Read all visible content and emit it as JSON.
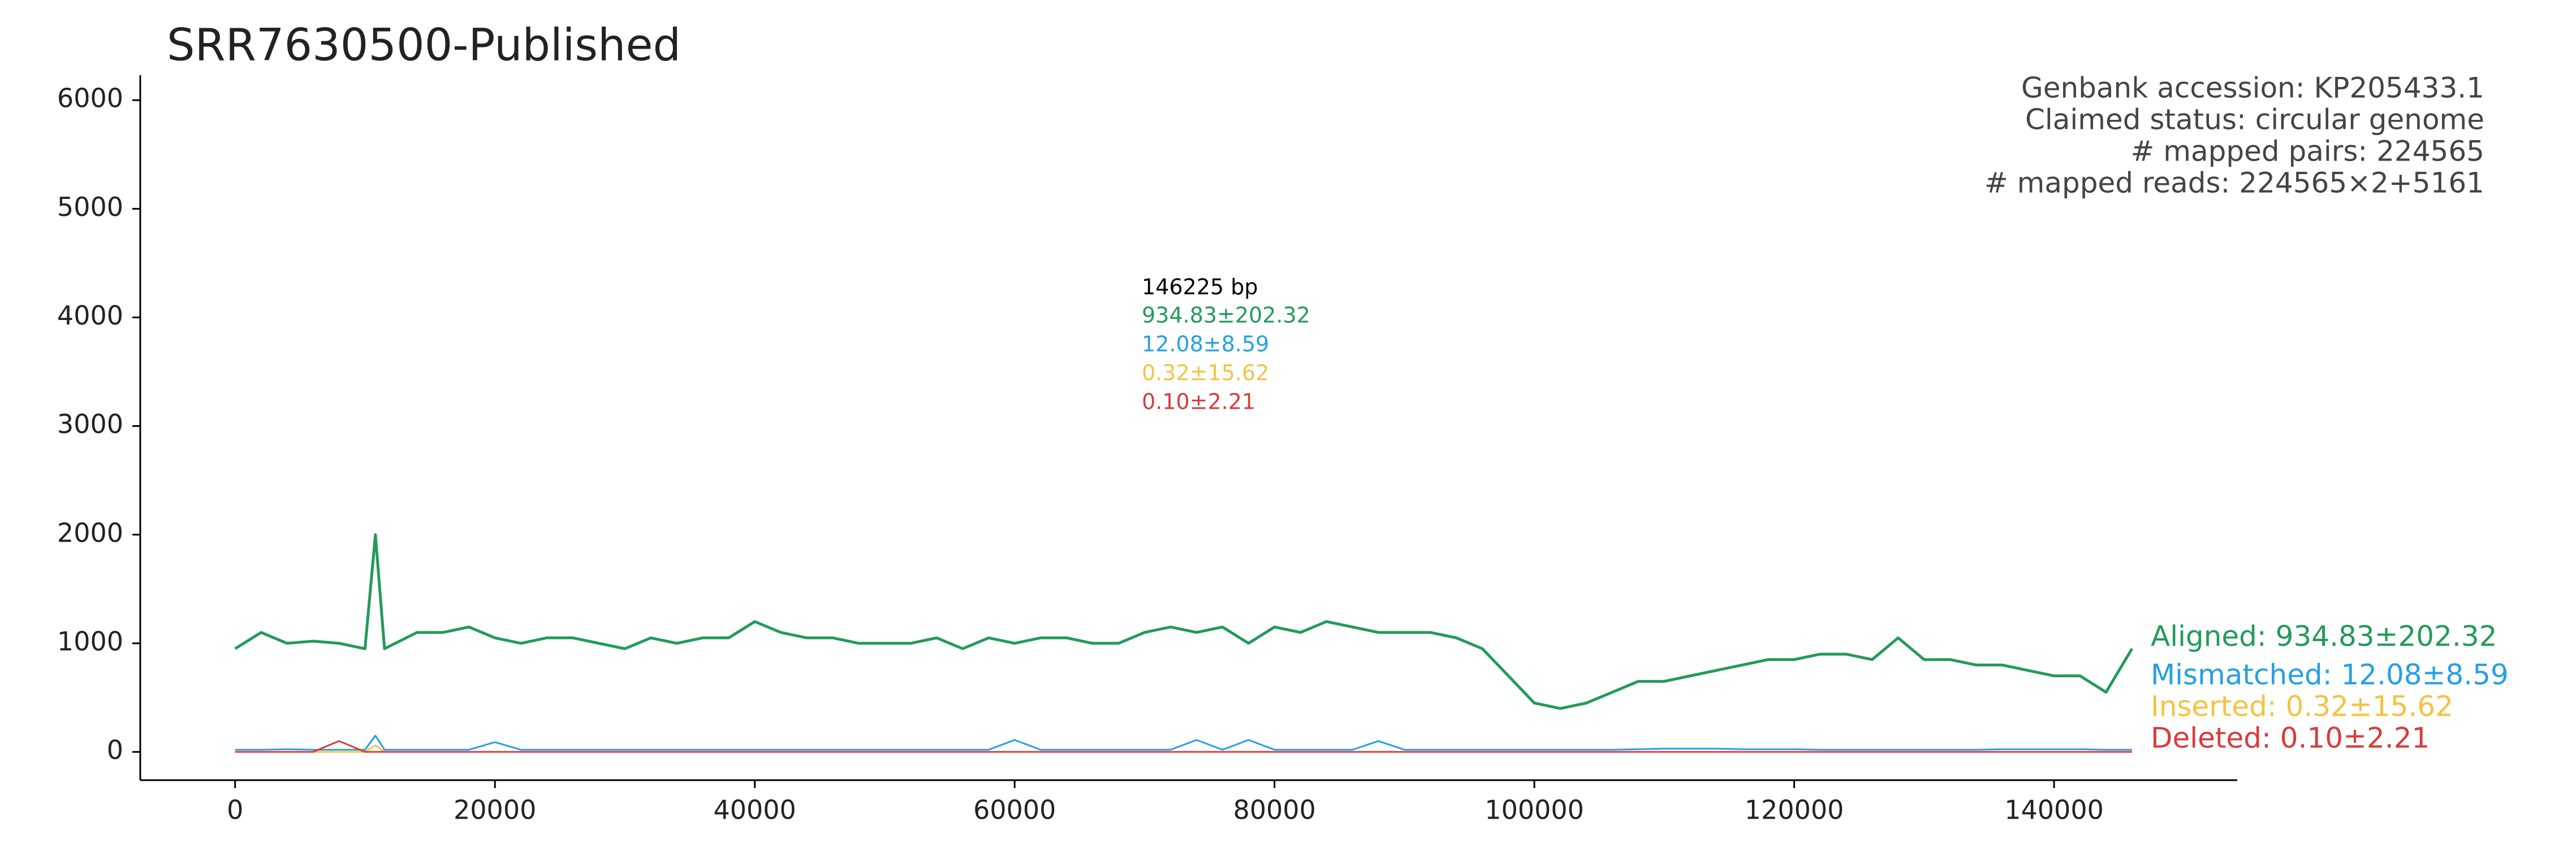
{
  "chart_data": {
    "type": "line",
    "title": "SRR7630500-Published",
    "info": [
      "Genbank accession: KP205433.1",
      "Claimed status: circular genome",
      "# mapped pairs: 224565",
      "# mapped reads: 224565×2+5161"
    ],
    "annotation": {
      "label": "146225 bp",
      "stats": [
        {
          "text": "934.83±202.32",
          "color": "#239a5a"
        },
        {
          "text": "12.08±8.59",
          "color": "#26a0e3"
        },
        {
          "text": "0.32±15.62",
          "color": "#f3c343"
        },
        {
          "text": "0.10±2.21",
          "color": "#d93b3b"
        }
      ]
    },
    "x": [
      0,
      2000,
      4000,
      6000,
      8000,
      10000,
      10800,
      11500,
      14000,
      16000,
      18000,
      20000,
      22000,
      24000,
      26000,
      28000,
      30000,
      32000,
      34000,
      36000,
      38000,
      40000,
      42000,
      44000,
      46000,
      48000,
      50000,
      52000,
      54000,
      56000,
      58000,
      60000,
      62000,
      64000,
      66000,
      68000,
      70000,
      72000,
      74000,
      76000,
      78000,
      80000,
      82000,
      84000,
      86000,
      88000,
      90000,
      92000,
      94000,
      96000,
      98000,
      100000,
      102000,
      104000,
      106000,
      108000,
      110000,
      112000,
      114000,
      116000,
      118000,
      120000,
      122000,
      124000,
      126000,
      128000,
      130000,
      132000,
      134000,
      136000,
      138000,
      140000,
      142000,
      144000,
      146000
    ],
    "series": [
      {
        "name": "Aligned: 934.83±202.32",
        "color": "#239a5a",
        "values": [
          950,
          1100,
          1000,
          1020,
          1000,
          950,
          2000,
          950,
          1100,
          1100,
          1150,
          1050,
          1000,
          1050,
          1050,
          1000,
          950,
          1050,
          1000,
          1050,
          1050,
          1200,
          1100,
          1050,
          1050,
          1000,
          1000,
          1000,
          1050,
          950,
          1050,
          1000,
          1050,
          1050,
          1000,
          1000,
          1100,
          1150,
          1100,
          1150,
          1000,
          1150,
          1100,
          1200,
          1150,
          1100,
          1100,
          1100,
          1050,
          950,
          700,
          450,
          400,
          450,
          550,
          650,
          650,
          700,
          750,
          800,
          850,
          850,
          900,
          900,
          850,
          1050,
          850,
          850,
          800,
          800,
          750,
          700,
          700,
          550,
          950
        ]
      },
      {
        "name": "Mismatched: 12.08±8.59",
        "color": "#26a0e3",
        "values": [
          20,
          20,
          25,
          20,
          20,
          20,
          150,
          20,
          20,
          20,
          20,
          90,
          20,
          20,
          20,
          20,
          20,
          20,
          20,
          20,
          20,
          20,
          20,
          20,
          20,
          20,
          20,
          20,
          20,
          20,
          20,
          110,
          20,
          20,
          20,
          20,
          20,
          20,
          110,
          20,
          110,
          20,
          20,
          20,
          20,
          100,
          20,
          20,
          20,
          20,
          20,
          20,
          20,
          20,
          20,
          25,
          30,
          30,
          30,
          25,
          25,
          25,
          20,
          20,
          20,
          20,
          20,
          20,
          20,
          25,
          25,
          25,
          25,
          20,
          20
        ]
      },
      {
        "name": "Inserted: 0.32±15.62",
        "color": "#f3c343",
        "values": [
          0,
          0,
          0,
          0,
          0,
          0,
          60,
          0,
          0,
          0,
          0,
          0,
          0,
          0,
          0,
          0,
          0,
          0,
          0,
          0,
          0,
          0,
          0,
          0,
          0,
          0,
          0,
          0,
          0,
          0,
          0,
          0,
          0,
          0,
          0,
          0,
          0,
          0,
          0,
          0,
          0,
          0,
          0,
          0,
          0,
          0,
          0,
          0,
          0,
          0,
          0,
          0,
          0,
          0,
          0,
          0,
          0,
          0,
          0,
          0,
          0,
          0,
          0,
          0,
          0,
          0,
          0,
          0,
          0,
          0,
          0,
          0,
          0,
          0,
          0
        ]
      },
      {
        "name": "Deleted: 0.10±2.21",
        "color": "#d93b3b",
        "values": [
          0,
          0,
          0,
          0,
          100,
          0,
          0,
          0,
          0,
          0,
          0,
          0,
          0,
          0,
          0,
          0,
          0,
          0,
          0,
          0,
          0,
          0,
          0,
          0,
          0,
          0,
          0,
          0,
          0,
          0,
          0,
          0,
          0,
          0,
          0,
          0,
          0,
          0,
          0,
          0,
          0,
          0,
          0,
          0,
          0,
          0,
          0,
          0,
          0,
          0,
          0,
          0,
          0,
          0,
          0,
          0,
          0,
          0,
          0,
          0,
          0,
          0,
          0,
          0,
          0,
          0,
          0,
          0,
          0,
          0,
          0,
          0,
          0,
          0,
          0
        ]
      }
    ],
    "xlim": [
      -7300,
      154100
    ],
    "xticks": [
      0,
      20000,
      40000,
      60000,
      80000,
      100000,
      120000,
      140000
    ],
    "ylim": [
      -260,
      6230
    ],
    "yticks": [
      0,
      1000,
      2000,
      3000,
      4000,
      5000,
      6000
    ],
    "grid": false
  }
}
